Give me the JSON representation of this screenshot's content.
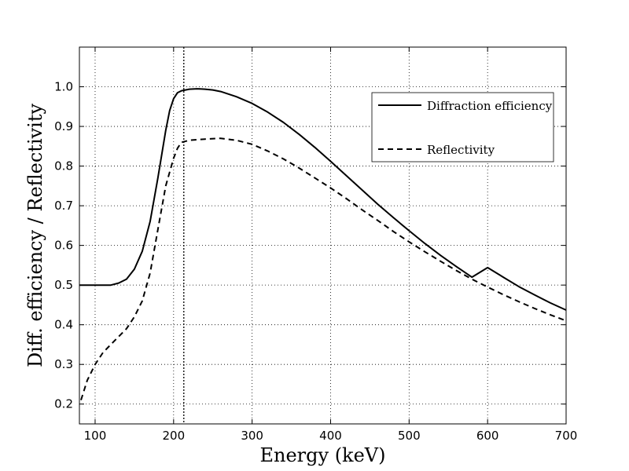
{
  "chart_data": {
    "type": "line",
    "xlabel": "Energy (keV)",
    "ylabel": "Diff. efficiency / Reflectivity",
    "xlim": [
      80,
      700
    ],
    "ylim": [
      0.15,
      1.1
    ],
    "xticks": [
      100,
      200,
      300,
      400,
      500,
      600,
      700
    ],
    "yticks": [
      0.2,
      0.3,
      0.4,
      0.5,
      0.6,
      0.7,
      0.8,
      0.9,
      1.0
    ],
    "grid": true,
    "legend_position": "upper-right",
    "vline": {
      "x": 213,
      "style": "dotted"
    },
    "series": [
      {
        "name": "Diffraction efficiency",
        "style": "solid",
        "x": [
          80,
          100,
          120,
          130,
          140,
          150,
          160,
          170,
          180,
          190,
          195,
          200,
          205,
          210,
          215,
          220,
          230,
          240,
          250,
          260,
          280,
          300,
          320,
          340,
          360,
          380,
          400,
          420,
          440,
          460,
          480,
          500,
          520,
          540,
          560,
          580,
          600,
          620,
          640,
          660,
          680,
          700
        ],
        "y": [
          0.5,
          0.5,
          0.5,
          0.505,
          0.515,
          0.54,
          0.585,
          0.66,
          0.77,
          0.89,
          0.94,
          0.97,
          0.985,
          0.99,
          0.992,
          0.994,
          0.995,
          0.994,
          0.992,
          0.988,
          0.975,
          0.958,
          0.936,
          0.91,
          0.88,
          0.847,
          0.812,
          0.776,
          0.74,
          0.704,
          0.67,
          0.637,
          0.605,
          0.575,
          0.547,
          0.52,
          0.544,
          0.52,
          0.496,
          0.475,
          0.455,
          0.437
        ]
      },
      {
        "name": "Reflectivity",
        "style": "dashed",
        "x": [
          82,
          90,
          100,
          110,
          120,
          130,
          140,
          150,
          160,
          170,
          180,
          190,
          200,
          205,
          210,
          220,
          240,
          260,
          280,
          300,
          320,
          340,
          360,
          380,
          400,
          420,
          440,
          460,
          480,
          500,
          520,
          540,
          560,
          580,
          600,
          620,
          640,
          660,
          680,
          700
        ],
        "y": [
          0.21,
          0.26,
          0.3,
          0.33,
          0.35,
          0.37,
          0.39,
          0.42,
          0.46,
          0.53,
          0.64,
          0.75,
          0.82,
          0.845,
          0.86,
          0.865,
          0.868,
          0.87,
          0.865,
          0.855,
          0.838,
          0.818,
          0.795,
          0.77,
          0.745,
          0.718,
          0.69,
          0.663,
          0.635,
          0.609,
          0.584,
          0.56,
          0.537,
          0.515,
          0.495,
          0.476,
          0.458,
          0.441,
          0.425,
          0.41
        ]
      }
    ]
  }
}
